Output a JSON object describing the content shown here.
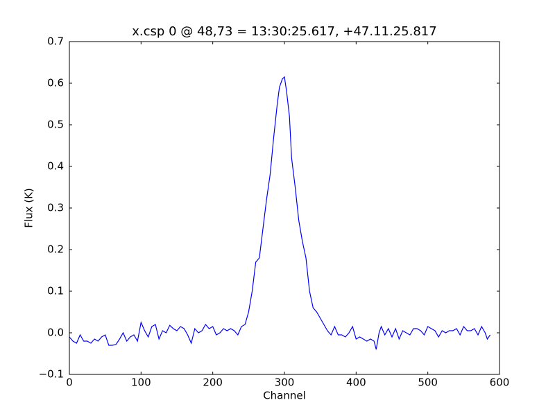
{
  "chart_data": {
    "type": "line",
    "title": "x.csp 0 @ 48,73 = 13:30:25.617, +47.11.25.817",
    "x_label": "Channel",
    "y_label": "Flux (K)",
    "color": "#0000ff",
    "grid": false,
    "xlim": [
      0,
      600
    ],
    "xticks": [
      0,
      100,
      200,
      300,
      400,
      500,
      600
    ],
    "ylim": [
      -0.1,
      0.7
    ],
    "yticks": [
      {
        "value": -0.1,
        "label": "−0.1"
      },
      {
        "value": 0,
        "label": "0.0"
      },
      0.1,
      0.2,
      0.3,
      0.4,
      0.5,
      0.6,
      0.7
    ],
    "x": [
      0,
      5,
      10,
      15,
      20,
      25,
      30,
      35,
      40,
      45,
      50,
      55,
      60,
      65,
      70,
      75,
      80,
      85,
      90,
      95,
      100,
      105,
      110,
      115,
      120,
      125,
      130,
      135,
      140,
      145,
      150,
      155,
      160,
      165,
      170,
      175,
      180,
      185,
      190,
      195,
      200,
      205,
      210,
      215,
      220,
      225,
      230,
      235,
      240,
      245,
      250,
      255,
      260,
      265,
      270,
      275,
      280,
      285,
      290,
      293,
      297,
      300,
      303,
      307,
      310,
      315,
      320,
      325,
      330,
      335,
      340,
      345,
      350,
      355,
      360,
      365,
      370,
      375,
      380,
      385,
      390,
      395,
      400,
      405,
      410,
      415,
      420,
      425,
      428,
      432,
      435,
      440,
      445,
      450,
      455,
      460,
      465,
      470,
      475,
      480,
      485,
      490,
      495,
      500,
      505,
      510,
      515,
      520,
      525,
      530,
      535,
      540,
      545,
      550,
      555,
      560,
      565,
      570,
      575,
      580,
      583,
      587
    ],
    "values": [
      -0.01,
      -0.02,
      -0.025,
      -0.005,
      -0.02,
      -0.02,
      -0.025,
      -0.015,
      -0.02,
      -0.01,
      -0.005,
      -0.03,
      -0.03,
      -0.028,
      -0.015,
      0.0,
      -0.02,
      -0.01,
      -0.005,
      -0.02,
      0.025,
      0.005,
      -0.01,
      0.015,
      0.02,
      -0.015,
      0.005,
      0.0,
      0.018,
      0.01,
      0.005,
      0.015,
      0.01,
      -0.005,
      -0.025,
      0.01,
      0.0,
      0.005,
      0.02,
      0.01,
      0.015,
      -0.005,
      0.0,
      0.01,
      0.005,
      0.01,
      0.005,
      -0.005,
      0.015,
      0.02,
      0.05,
      0.1,
      0.17,
      0.18,
      0.25,
      0.32,
      0.38,
      0.47,
      0.55,
      0.59,
      0.61,
      0.615,
      0.58,
      0.52,
      0.42,
      0.35,
      0.27,
      0.22,
      0.18,
      0.1,
      0.06,
      0.05,
      0.035,
      0.02,
      0.005,
      -0.005,
      0.015,
      -0.005,
      -0.005,
      -0.01,
      0.0,
      0.015,
      -0.015,
      -0.01,
      -0.015,
      -0.02,
      -0.015,
      -0.02,
      -0.04,
      0.0,
      0.015,
      -0.005,
      0.01,
      -0.01,
      0.01,
      -0.015,
      0.005,
      0.0,
      -0.005,
      0.01,
      0.01,
      0.005,
      -0.005,
      0.015,
      0.01,
      0.005,
      -0.01,
      0.005,
      0.0,
      0.005,
      0.005,
      0.01,
      -0.005,
      0.015,
      0.005,
      0.005,
      0.01,
      -0.005,
      0.015,
      0.0,
      -0.015,
      -0.005
    ]
  }
}
